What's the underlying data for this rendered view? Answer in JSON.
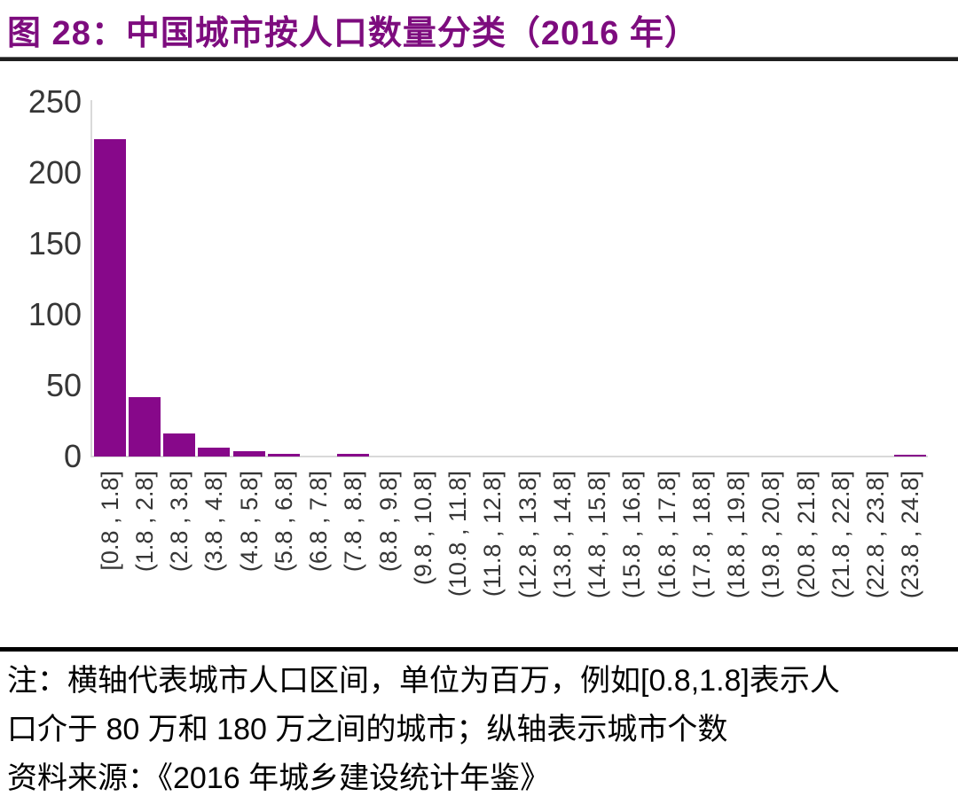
{
  "title": "图 28：中国城市按人口数量分类（2016 年）",
  "colors": {
    "title": "#7d0c7e",
    "bar": "#87088a",
    "axis_line": "#d9d9d9",
    "tick_label": "#363636",
    "separator": "#000000"
  },
  "chart_data": {
    "type": "bar",
    "title": "图 28：中国城市按人口数量分类（2016 年）",
    "categories": [
      "[0.8 , 1.8]",
      "(1.8 , 2.8]",
      "(2.8 , 3.8]",
      "(3.8 , 4.8]",
      "(4.8 , 5.8]",
      "(5.8 , 6.8]",
      "(6.8 , 7.8]",
      "(7.8 , 8.8]",
      "(8.8 , 9.8]",
      "(9.8 , 10.8]",
      "(10.8 , 11.8]",
      "(11.8 , 12.8]",
      "(12.8 , 13.8]",
      "(13.8 , 14.8]",
      "(14.8 , 15.8]",
      "(15.8 , 16.8]",
      "(16.8 , 17.8]",
      "(17.8 , 18.8]",
      "(18.8 , 19.8]",
      "(19.8 , 20.8]",
      "(20.8 , 21.8]",
      "(21.8 , 22.8]",
      "(22.8 , 23.8]",
      "(23.8 , 24.8]"
    ],
    "values": [
      224,
      42,
      16,
      6,
      4,
      2,
      0,
      2,
      0,
      0,
      0,
      0,
      0,
      0,
      0,
      0,
      0,
      0,
      0,
      0,
      0,
      0,
      0,
      1
    ],
    "xlabel": "",
    "ylabel": "",
    "ylim": [
      0,
      250
    ],
    "yticks": [
      0,
      50,
      100,
      150,
      200,
      250
    ],
    "grid": false,
    "legend": false,
    "bar_color": "#87088a"
  },
  "notes": {
    "lines": [
      "注：横轴代表城市人口区间，单位为百万，例如[0.8,1.8]表示人",
      "口介于 80 万和 180 万之间的城市；纵轴表示城市个数",
      "资料来源：《2016 年城乡建设统计年鉴》"
    ]
  }
}
